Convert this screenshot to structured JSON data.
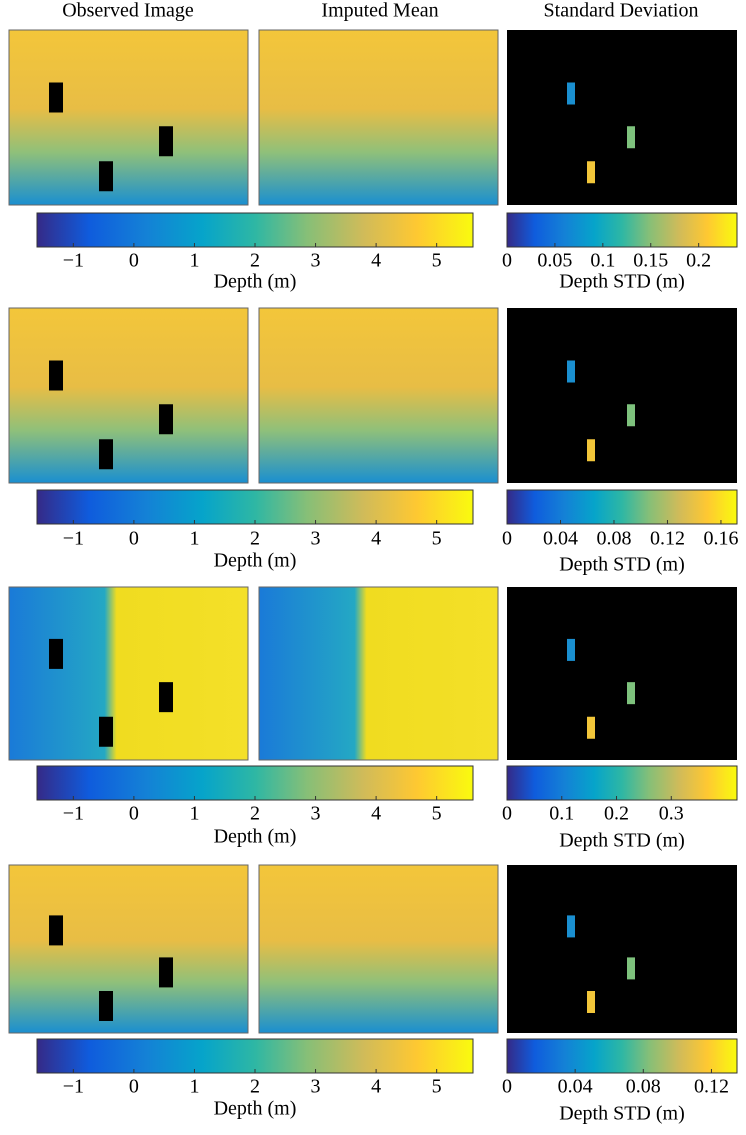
{
  "column_titles": [
    "Observed Image",
    "Imputed Mean",
    "Standard Deviation"
  ],
  "rows": [
    {
      "depth_colorbar": {
        "label": "Depth (m)",
        "lim": [
          -1.6,
          5.6
        ],
        "ticks": [
          {
            "value": -1,
            "label": "−1"
          },
          0,
          1,
          2,
          3,
          4,
          5
        ]
      },
      "std_colorbar": {
        "label": "Depth STD (m)",
        "lim": [
          0,
          0.24
        ],
        "ticks": [
          0,
          0.05,
          0.1,
          0.15,
          0.2
        ]
      }
    },
    {
      "depth_colorbar": {
        "label": "Depth (m)",
        "lim": [
          -1.6,
          5.6
        ],
        "ticks": [
          {
            "value": -1,
            "label": "−1"
          },
          0,
          1,
          2,
          3,
          4,
          5
        ]
      },
      "std_colorbar": {
        "label": "Depth STD (m)",
        "lim": [
          0,
          0.172
        ],
        "ticks": [
          0,
          0.04,
          0.08,
          0.12,
          0.16
        ]
      }
    },
    {
      "depth_colorbar": {
        "label": "Depth (m)",
        "lim": [
          -1.6,
          5.6
        ],
        "ticks": [
          {
            "value": -1,
            "label": "−1"
          },
          0,
          1,
          2,
          3,
          4,
          5
        ]
      },
      "std_colorbar": {
        "label": "Depth STD (m)",
        "lim": [
          0,
          0.42
        ],
        "ticks": [
          0,
          0.1,
          0.2,
          0.3
        ]
      }
    },
    {
      "depth_colorbar": {
        "label": "Depth (m)",
        "lim": [
          -1.6,
          5.6
        ],
        "ticks": [
          {
            "value": -1,
            "label": "−1"
          },
          0,
          1,
          2,
          3,
          4,
          5
        ]
      },
      "std_colorbar": {
        "label": "Depth STD (m)",
        "lim": [
          0,
          0.135
        ],
        "ticks": [
          0,
          0.04,
          0.08,
          0.12
        ]
      }
    }
  ]
}
